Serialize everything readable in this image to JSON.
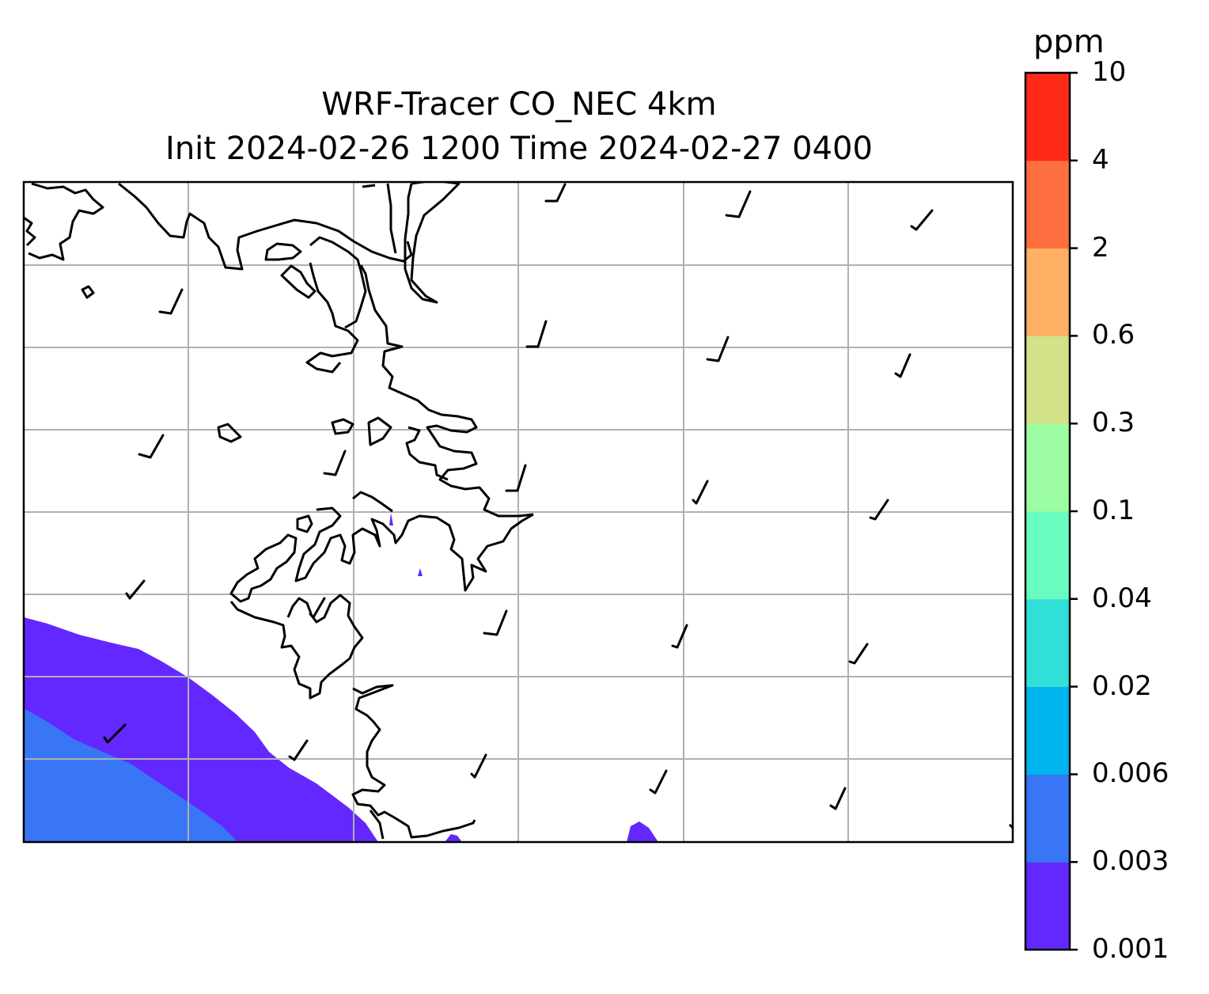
{
  "title": {
    "line1": "WRF-Tracer CO_NEC 4km",
    "line2": "Init 2024-02-26 1200 Time 2024-02-27 0400"
  },
  "colorbar": {
    "unit": "ppm",
    "levels": [
      "0.001",
      "0.003",
      "0.006",
      "0.02",
      "0.04",
      "0.1",
      "0.3",
      "0.6",
      "2",
      "4",
      "10"
    ],
    "colors": [
      "#6328ff",
      "#3876f5",
      "#00b4ee",
      "#30e0d8",
      "#69fcc0",
      "#9cfda2",
      "#d1e289",
      "#feb064",
      "#ff7040",
      "#ff2a18"
    ]
  },
  "colors": {
    "coast": "#000000",
    "grid": "#b0b0b0",
    "frame": "#000000",
    "barb": "#000000"
  }
}
